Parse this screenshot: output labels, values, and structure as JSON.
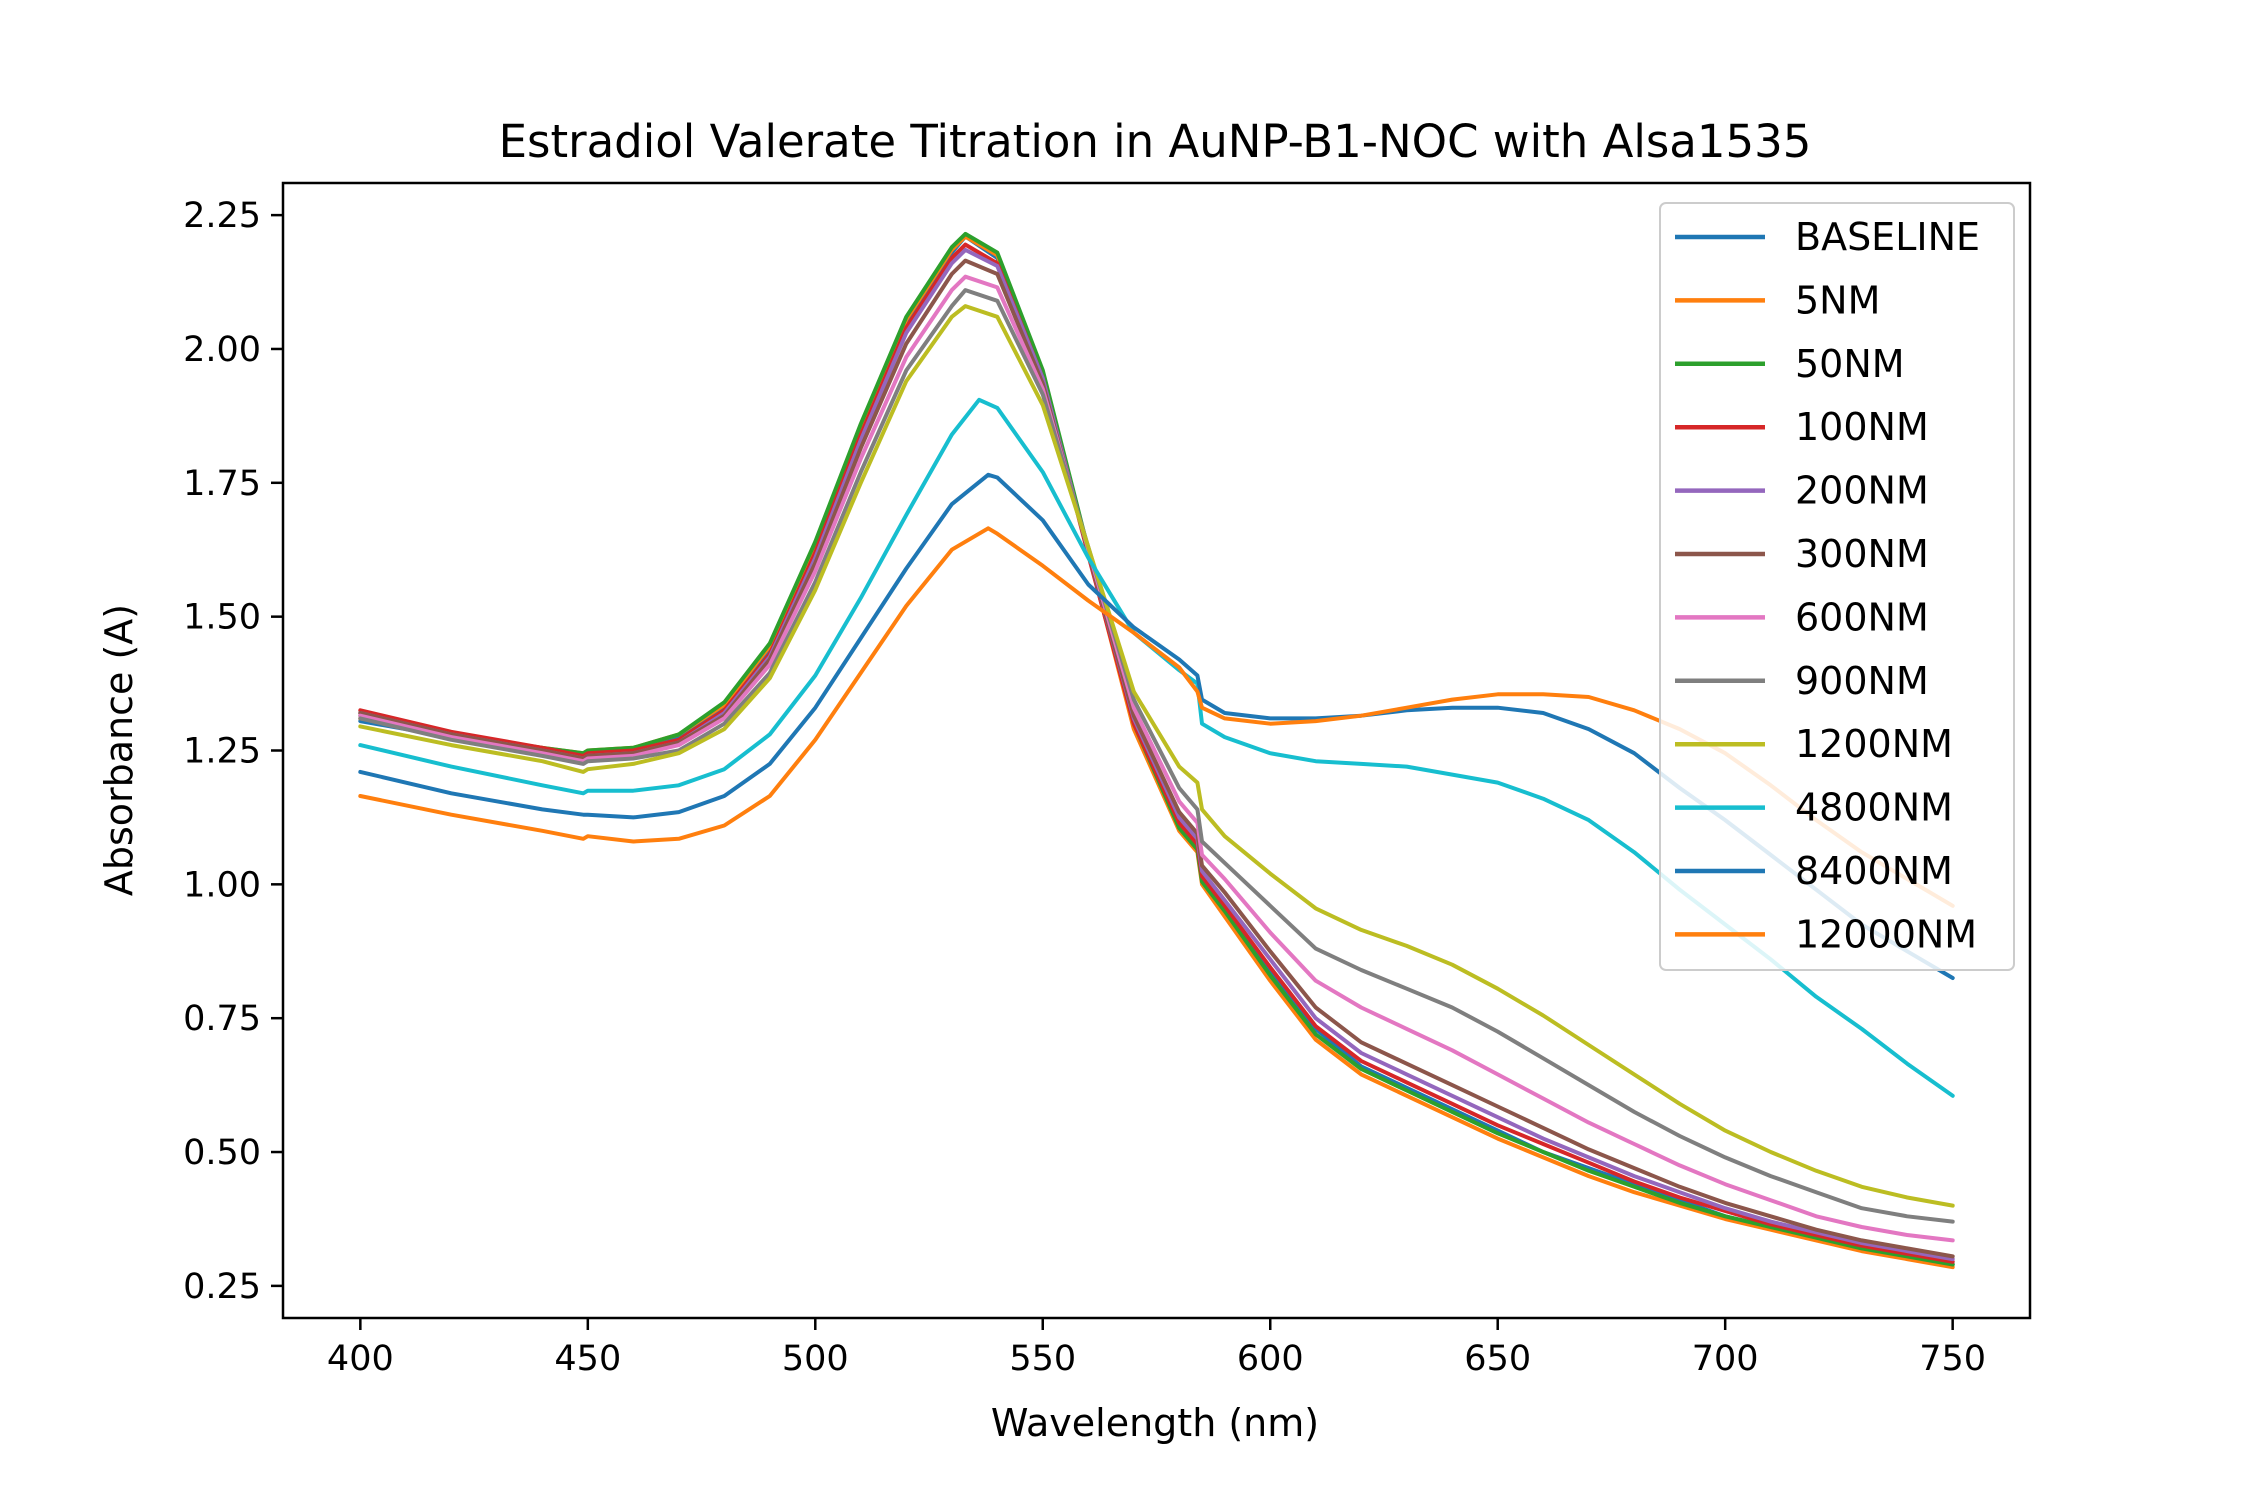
{
  "chart_data": {
    "type": "line",
    "title": "Estradiol Valerate Titration in AuNP-B1-NOC with Alsa1535",
    "xlabel": "Wavelength (nm)",
    "ylabel": "Absorbance (A)",
    "xlim": [
      383,
      767
    ],
    "ylim": [
      0.19,
      2.31
    ],
    "xticks": [
      400,
      450,
      500,
      550,
      600,
      650,
      700,
      750
    ],
    "xtick_labels": [
      "400",
      "450",
      "500",
      "550",
      "600",
      "650",
      "700",
      "750"
    ],
    "yticks": [
      0.25,
      0.5,
      0.75,
      1.0,
      1.25,
      1.5,
      1.75,
      2.0,
      2.25
    ],
    "ytick_labels": [
      "0.25",
      "0.50",
      "0.75",
      "1.00",
      "1.25",
      "1.50",
      "1.75",
      "2.00",
      "2.25"
    ],
    "grid": false,
    "legend_position": "top-right",
    "series": [
      {
        "name": "BASELINE",
        "color": "#1f77b4",
        "x": [
          400,
          420,
          440,
          449,
          450,
          460,
          470,
          480,
          490,
          500,
          510,
          520,
          530,
          533,
          540,
          550,
          560,
          570,
          580,
          584,
          585,
          590,
          600,
          610,
          620,
          630,
          640,
          650,
          660,
          670,
          680,
          690,
          700,
          710,
          720,
          730,
          740,
          750
        ],
        "y": [
          1.305,
          1.275,
          1.25,
          1.24,
          1.245,
          1.25,
          1.275,
          1.33,
          1.44,
          1.63,
          1.85,
          2.05,
          2.18,
          2.21,
          2.17,
          1.95,
          1.62,
          1.3,
          1.12,
          1.08,
          1.01,
          0.95,
          0.84,
          0.73,
          0.66,
          0.62,
          0.58,
          0.54,
          0.5,
          0.47,
          0.44,
          0.41,
          0.38,
          0.36,
          0.34,
          0.32,
          0.305,
          0.29
        ]
      },
      {
        "name": "5NM",
        "color": "#ff7f0e",
        "x": [
          400,
          420,
          440,
          449,
          450,
          460,
          470,
          480,
          490,
          500,
          510,
          520,
          530,
          533,
          540,
          550,
          560,
          570,
          580,
          584,
          585,
          590,
          600,
          610,
          620,
          630,
          640,
          650,
          660,
          670,
          680,
          690,
          700,
          710,
          720,
          730,
          740,
          750
        ],
        "y": [
          1.31,
          1.28,
          1.255,
          1.245,
          1.25,
          1.255,
          1.28,
          1.335,
          1.445,
          1.635,
          1.855,
          2.055,
          2.185,
          2.21,
          2.175,
          1.955,
          1.62,
          1.29,
          1.1,
          1.06,
          1.0,
          0.94,
          0.82,
          0.71,
          0.645,
          0.605,
          0.565,
          0.525,
          0.49,
          0.455,
          0.425,
          0.4,
          0.375,
          0.355,
          0.335,
          0.315,
          0.3,
          0.285
        ]
      },
      {
        "name": "50NM",
        "color": "#2ca02c",
        "x": [
          400,
          420,
          440,
          449,
          450,
          460,
          470,
          480,
          490,
          500,
          510,
          520,
          530,
          533,
          540,
          550,
          560,
          570,
          580,
          584,
          585,
          590,
          600,
          610,
          620,
          630,
          640,
          650,
          660,
          670,
          680,
          690,
          700,
          710,
          720,
          730,
          740,
          750
        ],
        "y": [
          1.315,
          1.28,
          1.255,
          1.245,
          1.25,
          1.255,
          1.28,
          1.34,
          1.45,
          1.64,
          1.86,
          2.06,
          2.19,
          2.215,
          2.18,
          1.96,
          1.625,
          1.3,
          1.105,
          1.065,
          1.005,
          0.95,
          0.83,
          0.72,
          0.655,
          0.615,
          0.575,
          0.535,
          0.5,
          0.465,
          0.435,
          0.405,
          0.38,
          0.36,
          0.34,
          0.32,
          0.305,
          0.29
        ]
      },
      {
        "name": "100NM",
        "color": "#d62728",
        "x": [
          400,
          420,
          440,
          449,
          450,
          460,
          470,
          480,
          490,
          500,
          510,
          520,
          530,
          533,
          540,
          550,
          560,
          570,
          580,
          584,
          585,
          590,
          600,
          610,
          620,
          630,
          640,
          650,
          660,
          670,
          680,
          690,
          700,
          710,
          720,
          730,
          740,
          750
        ],
        "y": [
          1.325,
          1.285,
          1.255,
          1.24,
          1.245,
          1.25,
          1.27,
          1.325,
          1.43,
          1.62,
          1.84,
          2.04,
          2.17,
          2.195,
          2.16,
          1.945,
          1.615,
          1.3,
          1.115,
          1.075,
          1.015,
          0.96,
          0.845,
          0.735,
          0.67,
          0.63,
          0.59,
          0.55,
          0.515,
          0.48,
          0.445,
          0.415,
          0.39,
          0.365,
          0.345,
          0.325,
          0.31,
          0.295
        ]
      },
      {
        "name": "200NM",
        "color": "#9467bd",
        "x": [
          400,
          420,
          440,
          449,
          450,
          460,
          470,
          480,
          490,
          500,
          510,
          520,
          530,
          533,
          540,
          550,
          560,
          570,
          580,
          584,
          585,
          590,
          600,
          610,
          620,
          630,
          640,
          650,
          660,
          670,
          680,
          690,
          700,
          710,
          720,
          730,
          740,
          750
        ],
        "y": [
          1.32,
          1.28,
          1.25,
          1.235,
          1.24,
          1.245,
          1.265,
          1.32,
          1.425,
          1.61,
          1.83,
          2.03,
          2.16,
          2.185,
          2.155,
          1.945,
          1.62,
          1.31,
          1.125,
          1.085,
          1.025,
          0.97,
          0.86,
          0.75,
          0.685,
          0.645,
          0.605,
          0.565,
          0.525,
          0.49,
          0.455,
          0.425,
          0.395,
          0.37,
          0.35,
          0.33,
          0.315,
          0.3
        ]
      },
      {
        "name": "300NM",
        "color": "#8c564b",
        "x": [
          400,
          420,
          440,
          449,
          450,
          460,
          470,
          480,
          490,
          500,
          510,
          520,
          530,
          533,
          540,
          550,
          560,
          570,
          580,
          584,
          585,
          590,
          600,
          610,
          620,
          630,
          640,
          650,
          660,
          670,
          680,
          690,
          700,
          710,
          720,
          730,
          740,
          750
        ],
        "y": [
          1.32,
          1.28,
          1.25,
          1.235,
          1.24,
          1.245,
          1.265,
          1.315,
          1.42,
          1.6,
          1.815,
          2.01,
          2.14,
          2.165,
          2.14,
          1.935,
          1.62,
          1.315,
          1.135,
          1.095,
          1.035,
          0.985,
          0.875,
          0.77,
          0.705,
          0.665,
          0.625,
          0.585,
          0.545,
          0.505,
          0.47,
          0.435,
          0.405,
          0.38,
          0.355,
          0.335,
          0.32,
          0.305
        ]
      },
      {
        "name": "600NM",
        "color": "#e377c2",
        "x": [
          400,
          420,
          440,
          449,
          450,
          460,
          470,
          480,
          490,
          500,
          510,
          520,
          530,
          533,
          540,
          550,
          560,
          570,
          580,
          584,
          585,
          590,
          600,
          610,
          620,
          630,
          640,
          650,
          660,
          670,
          680,
          690,
          700,
          710,
          720,
          730,
          740,
          750
        ],
        "y": [
          1.315,
          1.275,
          1.245,
          1.23,
          1.235,
          1.24,
          1.26,
          1.31,
          1.41,
          1.585,
          1.795,
          1.985,
          2.11,
          2.135,
          2.115,
          1.925,
          1.625,
          1.33,
          1.155,
          1.115,
          1.055,
          1.01,
          0.91,
          0.82,
          0.77,
          0.73,
          0.69,
          0.645,
          0.6,
          0.555,
          0.515,
          0.475,
          0.44,
          0.41,
          0.38,
          0.36,
          0.345,
          0.335
        ]
      },
      {
        "name": "900NM",
        "color": "#7f7f7f",
        "x": [
          400,
          420,
          440,
          449,
          450,
          460,
          470,
          480,
          490,
          500,
          510,
          520,
          530,
          533,
          540,
          550,
          560,
          570,
          580,
          584,
          585,
          590,
          600,
          610,
          620,
          630,
          640,
          650,
          660,
          670,
          680,
          690,
          700,
          710,
          720,
          730,
          740,
          750
        ],
        "y": [
          1.31,
          1.27,
          1.24,
          1.225,
          1.23,
          1.235,
          1.25,
          1.3,
          1.395,
          1.565,
          1.77,
          1.96,
          2.08,
          2.11,
          2.09,
          1.915,
          1.63,
          1.345,
          1.18,
          1.14,
          1.08,
          1.04,
          0.96,
          0.88,
          0.84,
          0.805,
          0.77,
          0.725,
          0.675,
          0.625,
          0.575,
          0.53,
          0.49,
          0.455,
          0.425,
          0.395,
          0.38,
          0.37
        ]
      },
      {
        "name": "1200NM",
        "color": "#bcbd22",
        "x": [
          400,
          420,
          440,
          449,
          450,
          460,
          470,
          480,
          490,
          500,
          510,
          520,
          530,
          533,
          540,
          550,
          560,
          570,
          580,
          584,
          585,
          590,
          600,
          610,
          620,
          630,
          640,
          650,
          660,
          670,
          680,
          690,
          700,
          710,
          720,
          730,
          740,
          750
        ],
        "y": [
          1.295,
          1.26,
          1.23,
          1.21,
          1.215,
          1.225,
          1.245,
          1.29,
          1.385,
          1.55,
          1.75,
          1.94,
          2.06,
          2.08,
          2.06,
          1.895,
          1.63,
          1.36,
          1.22,
          1.19,
          1.14,
          1.09,
          1.02,
          0.955,
          0.915,
          0.885,
          0.85,
          0.805,
          0.755,
          0.7,
          0.645,
          0.59,
          0.54,
          0.5,
          0.465,
          0.435,
          0.415,
          0.4
        ]
      },
      {
        "name": "4800NM",
        "color": "#17becf",
        "x": [
          400,
          420,
          440,
          449,
          450,
          460,
          470,
          480,
          490,
          500,
          510,
          520,
          530,
          536,
          540,
          550,
          560,
          570,
          580,
          584,
          585,
          590,
          600,
          610,
          620,
          630,
          640,
          650,
          660,
          670,
          680,
          690,
          700,
          710,
          720,
          730,
          740,
          750
        ],
        "y": [
          1.26,
          1.22,
          1.185,
          1.17,
          1.175,
          1.175,
          1.185,
          1.215,
          1.28,
          1.39,
          1.535,
          1.69,
          1.84,
          1.905,
          1.89,
          1.77,
          1.61,
          1.47,
          1.4,
          1.375,
          1.3,
          1.275,
          1.245,
          1.23,
          1.225,
          1.22,
          1.205,
          1.19,
          1.16,
          1.12,
          1.06,
          0.99,
          0.925,
          0.86,
          0.79,
          0.73,
          0.665,
          0.605
        ]
      },
      {
        "name": "8400NM",
        "color": "#1f77b4",
        "x": [
          400,
          420,
          440,
          449,
          450,
          460,
          470,
          480,
          490,
          500,
          510,
          520,
          530,
          538,
          540,
          550,
          560,
          570,
          580,
          584,
          585,
          590,
          600,
          610,
          620,
          630,
          640,
          650,
          660,
          670,
          680,
          690,
          700,
          710,
          720,
          730,
          740,
          750
        ],
        "y": [
          1.21,
          1.17,
          1.14,
          1.13,
          1.13,
          1.125,
          1.135,
          1.165,
          1.225,
          1.33,
          1.46,
          1.59,
          1.71,
          1.765,
          1.76,
          1.68,
          1.56,
          1.48,
          1.42,
          1.39,
          1.345,
          1.32,
          1.31,
          1.31,
          1.315,
          1.325,
          1.33,
          1.33,
          1.32,
          1.29,
          1.245,
          1.18,
          1.12,
          1.055,
          0.99,
          0.925,
          0.875,
          0.825
        ]
      },
      {
        "name": "12000NM",
        "color": "#ff7f0e",
        "x": [
          400,
          420,
          440,
          449,
          450,
          460,
          470,
          480,
          490,
          500,
          510,
          520,
          530,
          538,
          540,
          550,
          560,
          570,
          580,
          584,
          585,
          590,
          600,
          610,
          620,
          630,
          640,
          650,
          660,
          670,
          680,
          690,
          700,
          710,
          720,
          730,
          740,
          750
        ],
        "y": [
          1.165,
          1.13,
          1.1,
          1.085,
          1.09,
          1.08,
          1.085,
          1.11,
          1.165,
          1.27,
          1.395,
          1.52,
          1.625,
          1.665,
          1.655,
          1.595,
          1.53,
          1.47,
          1.405,
          1.36,
          1.33,
          1.31,
          1.3,
          1.305,
          1.315,
          1.33,
          1.345,
          1.355,
          1.355,
          1.35,
          1.325,
          1.29,
          1.245,
          1.185,
          1.12,
          1.06,
          1.01,
          0.96
        ]
      }
    ]
  }
}
